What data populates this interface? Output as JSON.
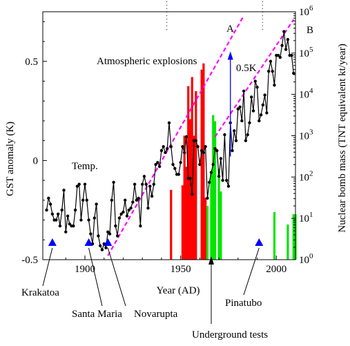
{
  "chart_data": {
    "type": "line",
    "xlabel": "Year (AD)",
    "ylabel_left": "GST anomaly (K)",
    "ylabel_right": "Nuclear bomb mass (TNT equivalent kt/year)",
    "xlim": [
      1878,
      2010
    ],
    "ylim_left": [
      -0.5,
      0.75
    ],
    "ylim_right_log10": [
      0,
      6
    ],
    "x_ticks": [
      {
        "value": 1900,
        "label": "1900"
      },
      {
        "value": 1950,
        "label": "1950"
      },
      {
        "value": 2000,
        "label": "2000"
      }
    ],
    "y_left_ticks": [
      {
        "value": 0.5,
        "label": "0.5"
      },
      {
        "value": 0,
        "label": "0"
      },
      {
        "value": -0.5,
        "label": "-0.5"
      }
    ],
    "y_right_ticks": [
      {
        "exp": 0,
        "base": "10",
        "sup": "0"
      },
      {
        "exp": 1,
        "base": "10",
        "sup": "1"
      },
      {
        "exp": 2,
        "base": "10",
        "sup": "2"
      },
      {
        "exp": 3,
        "base": "10",
        "sup": "3"
      },
      {
        "exp": 4,
        "base": "10",
        "sup": "4"
      },
      {
        "exp": 5,
        "base": "10",
        "sup": "5"
      },
      {
        "exp": 6,
        "base": "10",
        "sup": "6"
      }
    ],
    "series": [
      {
        "name": "Temp.",
        "color": "#000000",
        "x_start": 1880,
        "values": [
          -0.25,
          -0.19,
          -0.22,
          -0.27,
          -0.3,
          -0.3,
          -0.27,
          -0.33,
          -0.25,
          -0.15,
          -0.36,
          -0.28,
          -0.32,
          -0.33,
          -0.33,
          -0.25,
          -0.13,
          -0.12,
          -0.3,
          -0.2,
          -0.12,
          -0.2,
          -0.3,
          -0.37,
          -0.42,
          -0.29,
          -0.22,
          -0.38,
          -0.43,
          -0.45,
          -0.42,
          -0.44,
          -0.36,
          -0.37,
          -0.2,
          -0.11,
          -0.33,
          -0.38,
          -0.29,
          -0.27,
          -0.26,
          -0.2,
          -0.28,
          -0.25,
          -0.24,
          -0.21,
          -0.12,
          -0.2,
          -0.19,
          -0.33,
          -0.12,
          -0.08,
          -0.12,
          -0.24,
          -0.13,
          -0.18,
          -0.12,
          -0.02,
          -0.01,
          -0.03,
          0.05,
          0.07,
          0.04,
          0.06,
          0.19,
          0.07,
          -0.02,
          -0.04,
          -0.07,
          -0.07,
          -0.01,
          0.07,
          0.04,
          0.12,
          -0.09,
          -0.09,
          -0.17,
          0.1,
          0.1,
          0.07,
          -0.02,
          0.05,
          0.04,
          0.07,
          -0.19,
          -0.11,
          -0.06,
          -0.02,
          0.06,
          0.05,
          -0.08,
          0.01,
          -0.1,
          0.13,
          -0.1,
          -0.13,
          0.19,
          0.05,
          0.15,
          0.1,
          0.26,
          0.27,
          0.2,
          0.35,
          0.1,
          0.13,
          0.19,
          0.32,
          0.25,
          0.4,
          0.37,
          0.2,
          0.23,
          0.28,
          0.33,
          0.24,
          0.45,
          0.5,
          0.45,
          0.38,
          0.53,
          0.53,
          0.52,
          0.58,
          0.65,
          0.56,
          0.61,
          0.53,
          0.53,
          0.44
        ]
      },
      {
        "name": "Atmospheric explosions",
        "color": "#ff0000",
        "type": "bar",
        "points": [
          {
            "x": 1945,
            "log10": 1.69
          },
          {
            "x": 1951,
            "log10": 1.8
          },
          {
            "x": 1952,
            "log10": 3.0
          },
          {
            "x": 1953,
            "log10": 2.25
          },
          {
            "x": 1954,
            "log10": 4.2
          },
          {
            "x": 1955,
            "log10": 3.4
          },
          {
            "x": 1956,
            "log10": 4.42
          },
          {
            "x": 1957,
            "log10": 3.0
          },
          {
            "x": 1958,
            "log10": 4.08
          },
          {
            "x": 1961,
            "log10": 4.6
          },
          {
            "x": 1962,
            "log10": 4.75
          },
          {
            "x": 1963,
            "log10": 1.5
          }
        ]
      },
      {
        "name": "Underground tests",
        "color": "#00e600",
        "type": "bar",
        "points": [
          {
            "x": 1964,
            "log10": 1.3
          },
          {
            "x": 1966,
            "log10": 2.1
          },
          {
            "x": 1967,
            "log10": 3.5
          },
          {
            "x": 1968,
            "log10": 3.35
          },
          {
            "x": 1970,
            "log10": 2.2
          },
          {
            "x": 1971,
            "log10": 1.65
          },
          {
            "x": 1999,
            "log10": 1.15
          },
          {
            "x": 2006,
            "log10": 0.85
          },
          {
            "x": 2009,
            "log10": 1.1
          },
          {
            "x": 2010,
            "log10": 1.1
          }
        ]
      }
    ],
    "trend_lines": [
      {
        "label": "A",
        "color": "#ff00ff",
        "dashed": true,
        "from": [
          1912,
          -0.48
        ],
        "to": [
          1983,
          0.73
        ]
      },
      {
        "label": "B",
        "color": "#ff00ff",
        "dashed": true,
        "from": [
          1968,
          0.12
        ],
        "to": [
          2009,
          0.71
        ]
      }
    ],
    "arrow": {
      "label": "0.5K",
      "x": 1976,
      "y_from": 0.02,
      "y_to": 0.55,
      "color": "#0000ff"
    },
    "volcanoes": [
      {
        "name": "Krakatoa",
        "year": 1883
      },
      {
        "name": "Santa Maria",
        "year": 1902
      },
      {
        "name": "Novarupta",
        "year": 1912
      },
      {
        "name": "Pinatubo",
        "year": 1991
      }
    ],
    "annotations": [
      {
        "text": "Atmospheric explosions"
      },
      {
        "text": "Temp."
      },
      {
        "text": "Underground tests"
      }
    ]
  }
}
